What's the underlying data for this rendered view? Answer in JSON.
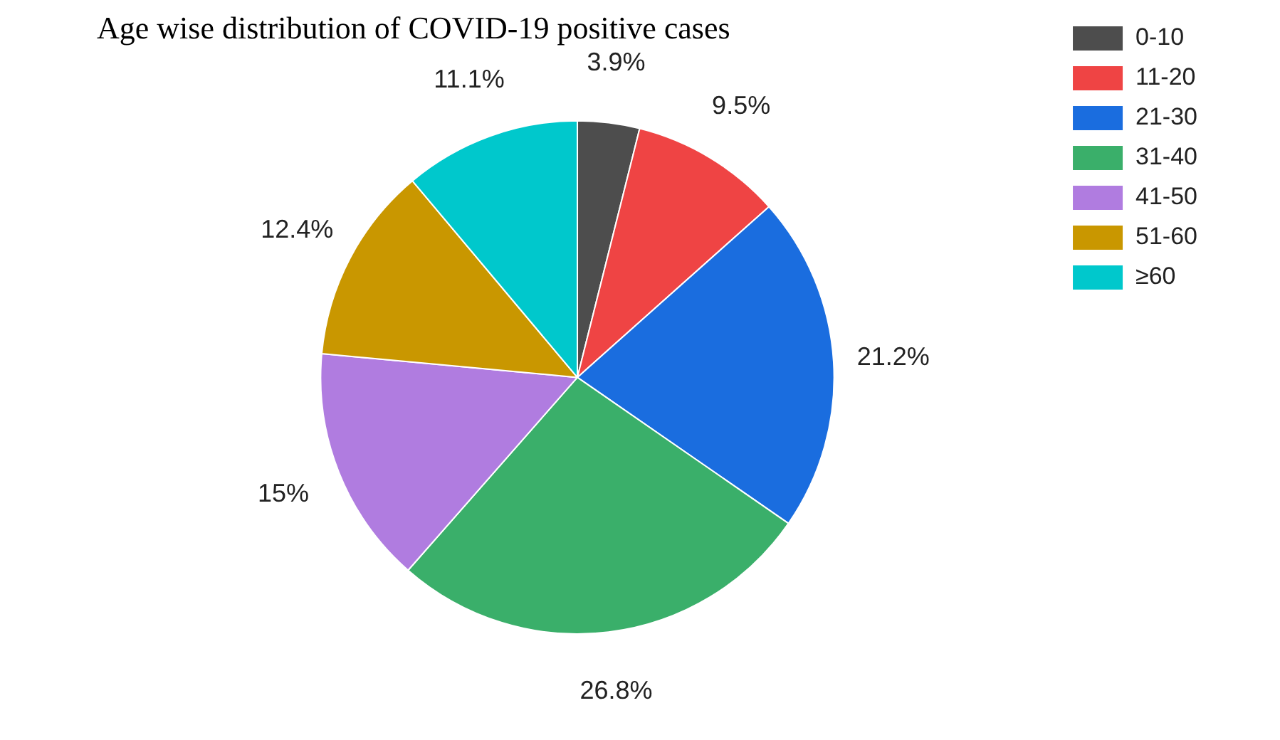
{
  "chart_data": {
    "type": "pie",
    "title": "Age wise distribution of COVID-19 positive cases",
    "categories": [
      "0-10",
      "11-20",
      "21-30",
      "31-40",
      "41-50",
      "51-60",
      "≥60"
    ],
    "values": [
      3.9,
      9.5,
      21.2,
      26.8,
      15,
      12.4,
      11.1
    ],
    "colors": [
      "#4d4d4d",
      "#ef4444",
      "#1a6ddf",
      "#3aaf6a",
      "#b07ce0",
      "#c99700",
      "#00c8cc"
    ],
    "value_labels": [
      "3.9%",
      "9.5%",
      "21.2%",
      "26.8%",
      "15%",
      "12.4%",
      "11.1%"
    ],
    "legend": "top right"
  }
}
